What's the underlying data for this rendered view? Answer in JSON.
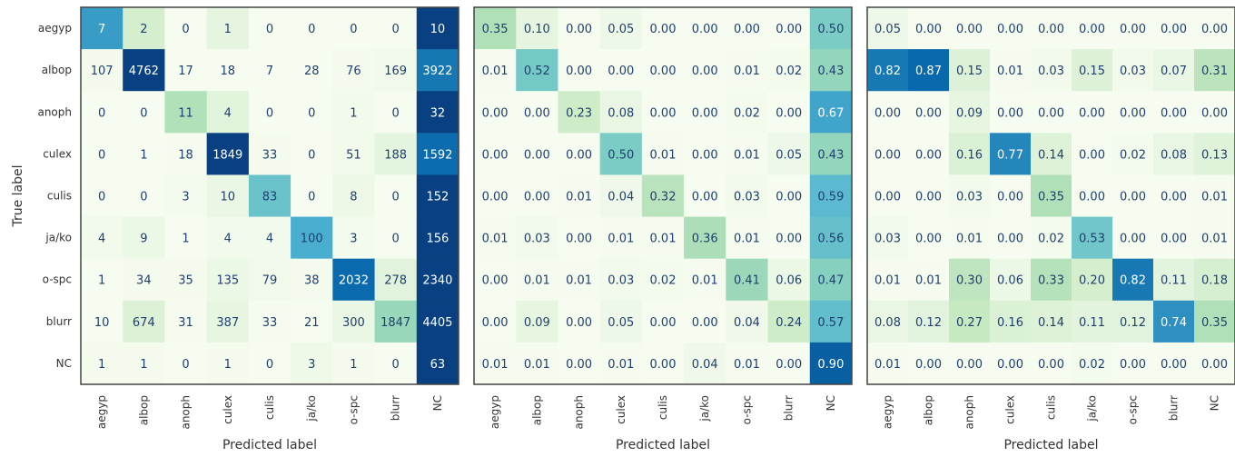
{
  "chart_data": [
    {
      "type": "heatmap",
      "title": "",
      "xlabel": "Predicted label",
      "ylabel": "True label",
      "x_categories": [
        "aegyp",
        "albop",
        "anoph",
        "culex",
        "culis",
        "ja/ko",
        "o-spc",
        "blurr",
        "NC"
      ],
      "y_categories": [
        "aegyp",
        "albop",
        "anoph",
        "culex",
        "culis",
        "ja/ko",
        "o-spc",
        "blurr",
        "NC"
      ],
      "cell_labels": [
        [
          "7",
          "2",
          "0",
          "1",
          "0",
          "0",
          "0",
          "0",
          "10"
        ],
        [
          "107",
          "4762",
          "17",
          "18",
          "7",
          "28",
          "76",
          "169",
          "3922"
        ],
        [
          "0",
          "0",
          "11",
          "4",
          "0",
          "0",
          "1",
          "0",
          "32"
        ],
        [
          "0",
          "1",
          "18",
          "1849",
          "33",
          "0",
          "51",
          "188",
          "1592"
        ],
        [
          "0",
          "0",
          "3",
          "10",
          "83",
          "0",
          "8",
          "0",
          "152"
        ],
        [
          "4",
          "9",
          "1",
          "4",
          "4",
          "100",
          "3",
          "0",
          "156"
        ],
        [
          "1",
          "34",
          "35",
          "135",
          "79",
          "38",
          "2032",
          "278",
          "2340"
        ],
        [
          "10",
          "674",
          "31",
          "387",
          "33",
          "21",
          "300",
          "1847",
          "4405"
        ],
        [
          "1",
          "1",
          "0",
          "1",
          "0",
          "3",
          "1",
          "0",
          "63"
        ]
      ],
      "values": [
        [
          7,
          2,
          0,
          1,
          0,
          0,
          0,
          0,
          10
        ],
        [
          107,
          4762,
          17,
          18,
          7,
          28,
          76,
          169,
          3922
        ],
        [
          0,
          0,
          11,
          4,
          0,
          0,
          1,
          0,
          32
        ],
        [
          0,
          1,
          18,
          1849,
          33,
          0,
          51,
          188,
          1592
        ],
        [
          0,
          0,
          3,
          10,
          83,
          0,
          8,
          0,
          152
        ],
        [
          4,
          9,
          1,
          4,
          4,
          100,
          3,
          0,
          156
        ],
        [
          1,
          34,
          35,
          135,
          79,
          38,
          2032,
          278,
          2340
        ],
        [
          10,
          674,
          31,
          387,
          33,
          21,
          300,
          1847,
          4405
        ],
        [
          1,
          1,
          0,
          1,
          0,
          3,
          1,
          0,
          63
        ]
      ],
      "colormap": "GnBu",
      "color_scale": "row-normalized"
    },
    {
      "type": "heatmap",
      "title": "",
      "xlabel": "Predicted label",
      "ylabel": "",
      "x_categories": [
        "aegyp",
        "albop",
        "anoph",
        "culex",
        "culis",
        "ja/ko",
        "o-spc",
        "blurr",
        "NC"
      ],
      "y_categories": [],
      "cell_labels": [
        [
          "0.35",
          "0.10",
          "0.00",
          "0.05",
          "0.00",
          "0.00",
          "0.00",
          "0.00",
          "0.50"
        ],
        [
          "0.01",
          "0.52",
          "0.00",
          "0.00",
          "0.00",
          "0.00",
          "0.01",
          "0.02",
          "0.43"
        ],
        [
          "0.00",
          "0.00",
          "0.23",
          "0.08",
          "0.00",
          "0.00",
          "0.02",
          "0.00",
          "0.67"
        ],
        [
          "0.00",
          "0.00",
          "0.00",
          "0.50",
          "0.01",
          "0.00",
          "0.01",
          "0.05",
          "0.43"
        ],
        [
          "0.00",
          "0.00",
          "0.01",
          "0.04",
          "0.32",
          "0.00",
          "0.03",
          "0.00",
          "0.59"
        ],
        [
          "0.01",
          "0.03",
          "0.00",
          "0.01",
          "0.01",
          "0.36",
          "0.01",
          "0.00",
          "0.56"
        ],
        [
          "0.00",
          "0.01",
          "0.01",
          "0.03",
          "0.02",
          "0.01",
          "0.41",
          "0.06",
          "0.47"
        ],
        [
          "0.00",
          "0.09",
          "0.00",
          "0.05",
          "0.00",
          "0.00",
          "0.04",
          "0.24",
          "0.57"
        ],
        [
          "0.01",
          "0.01",
          "0.00",
          "0.01",
          "0.00",
          "0.04",
          "0.01",
          "0.00",
          "0.90"
        ]
      ],
      "values": [
        [
          0.35,
          0.1,
          0.0,
          0.05,
          0.0,
          0.0,
          0.0,
          0.0,
          0.5
        ],
        [
          0.01,
          0.52,
          0.0,
          0.0,
          0.0,
          0.0,
          0.01,
          0.02,
          0.43
        ],
        [
          0.0,
          0.0,
          0.23,
          0.08,
          0.0,
          0.0,
          0.02,
          0.0,
          0.67
        ],
        [
          0.0,
          0.0,
          0.0,
          0.5,
          0.01,
          0.0,
          0.01,
          0.05,
          0.43
        ],
        [
          0.0,
          0.0,
          0.01,
          0.04,
          0.32,
          0.0,
          0.03,
          0.0,
          0.59
        ],
        [
          0.01,
          0.03,
          0.0,
          0.01,
          0.01,
          0.36,
          0.01,
          0.0,
          0.56
        ],
        [
          0.0,
          0.01,
          0.01,
          0.03,
          0.02,
          0.01,
          0.41,
          0.06,
          0.47
        ],
        [
          0.0,
          0.09,
          0.0,
          0.05,
          0.0,
          0.0,
          0.04,
          0.24,
          0.57
        ],
        [
          0.01,
          0.01,
          0.0,
          0.01,
          0.0,
          0.04,
          0.01,
          0.0,
          0.9
        ]
      ],
      "colormap": "GnBu",
      "color_scale": "absolute"
    },
    {
      "type": "heatmap",
      "title": "",
      "xlabel": "Predicted label",
      "ylabel": "",
      "x_categories": [
        "aegyp",
        "albop",
        "anoph",
        "culex",
        "culis",
        "ja/ko",
        "o-spc",
        "blurr",
        "NC"
      ],
      "y_categories": [],
      "cell_labels": [
        [
          "0.05",
          "0.00",
          "0.00",
          "0.00",
          "0.00",
          "0.00",
          "0.00",
          "0.00",
          "0.00"
        ],
        [
          "0.82",
          "0.87",
          "0.15",
          "0.01",
          "0.03",
          "0.15",
          "0.03",
          "0.07",
          "0.31"
        ],
        [
          "0.00",
          "0.00",
          "0.09",
          "0.00",
          "0.00",
          "0.00",
          "0.00",
          "0.00",
          "0.00"
        ],
        [
          "0.00",
          "0.00",
          "0.16",
          "0.77",
          "0.14",
          "0.00",
          "0.02",
          "0.08",
          "0.13"
        ],
        [
          "0.00",
          "0.00",
          "0.03",
          "0.00",
          "0.35",
          "0.00",
          "0.00",
          "0.00",
          "0.01"
        ],
        [
          "0.03",
          "0.00",
          "0.01",
          "0.00",
          "0.02",
          "0.53",
          "0.00",
          "0.00",
          "0.01"
        ],
        [
          "0.01",
          "0.01",
          "0.30",
          "0.06",
          "0.33",
          "0.20",
          "0.82",
          "0.11",
          "0.18"
        ],
        [
          "0.08",
          "0.12",
          "0.27",
          "0.16",
          "0.14",
          "0.11",
          "0.12",
          "0.74",
          "0.35"
        ],
        [
          "0.01",
          "0.00",
          "0.00",
          "0.00",
          "0.00",
          "0.02",
          "0.00",
          "0.00",
          "0.00"
        ]
      ],
      "values": [
        [
          0.05,
          0.0,
          0.0,
          0.0,
          0.0,
          0.0,
          0.0,
          0.0,
          0.0
        ],
        [
          0.82,
          0.87,
          0.15,
          0.01,
          0.03,
          0.15,
          0.03,
          0.07,
          0.31
        ],
        [
          0.0,
          0.0,
          0.09,
          0.0,
          0.0,
          0.0,
          0.0,
          0.0,
          0.0
        ],
        [
          0.0,
          0.0,
          0.16,
          0.77,
          0.14,
          0.0,
          0.02,
          0.08,
          0.13
        ],
        [
          0.0,
          0.0,
          0.03,
          0.0,
          0.35,
          0.0,
          0.0,
          0.0,
          0.01
        ],
        [
          0.03,
          0.0,
          0.01,
          0.0,
          0.02,
          0.53,
          0.0,
          0.0,
          0.01
        ],
        [
          0.01,
          0.01,
          0.3,
          0.06,
          0.33,
          0.2,
          0.82,
          0.11,
          0.18
        ],
        [
          0.08,
          0.12,
          0.27,
          0.16,
          0.14,
          0.11,
          0.12,
          0.74,
          0.35
        ],
        [
          0.01,
          0.0,
          0.0,
          0.0,
          0.0,
          0.02,
          0.0,
          0.0,
          0.0
        ]
      ],
      "colormap": "GnBu",
      "color_scale": "absolute"
    }
  ]
}
